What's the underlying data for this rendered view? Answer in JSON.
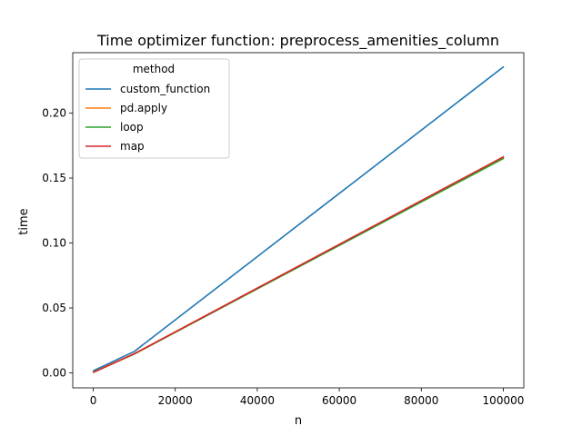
{
  "chart_data": {
    "type": "line",
    "title": "Time optimizer function: preprocess_amenities_column",
    "xlabel": "n",
    "ylabel": "time",
    "xlim": [
      -5000,
      105000
    ],
    "ylim": [
      -0.0115,
      0.2465
    ],
    "x_ticks": [
      0,
      20000,
      40000,
      60000,
      80000,
      100000
    ],
    "x_tick_labels": [
      "0",
      "20000",
      "40000",
      "60000",
      "80000",
      "100000"
    ],
    "y_ticks": [
      0.0,
      0.05,
      0.1,
      0.15,
      0.2
    ],
    "y_tick_labels": [
      "0.00",
      "0.05",
      "0.10",
      "0.15",
      "0.20"
    ],
    "grid": false,
    "legend": {
      "title": "method",
      "placement": "top-left"
    },
    "x": [
      100,
      10000,
      100000
    ],
    "series": [
      {
        "name": "custom_function",
        "color": "#1f77b4",
        "values": [
          0.0018,
          0.0165,
          0.2355
        ]
      },
      {
        "name": "pd.apply",
        "color": "#ff7f0e",
        "values": [
          0.0007,
          0.0148,
          0.166
        ]
      },
      {
        "name": "loop",
        "color": "#2ca02c",
        "values": [
          0.0007,
          0.0145,
          0.165
        ]
      },
      {
        "name": "map",
        "color": "#d62728",
        "values": [
          0.0005,
          0.0147,
          0.1663
        ]
      }
    ]
  }
}
